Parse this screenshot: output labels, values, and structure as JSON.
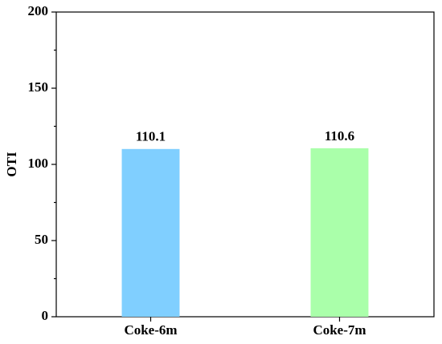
{
  "chart_data": {
    "type": "bar",
    "y_label": "OTI",
    "categories": [
      "Coke-6m",
      "Coke-7m"
    ],
    "values": [
      110.1,
      110.6
    ],
    "colors": [
      "#80cfff",
      "#aaffaa"
    ],
    "ylim": [
      0,
      200
    ],
    "yticks": [
      0,
      50,
      100,
      150,
      200
    ],
    "grid": false
  }
}
